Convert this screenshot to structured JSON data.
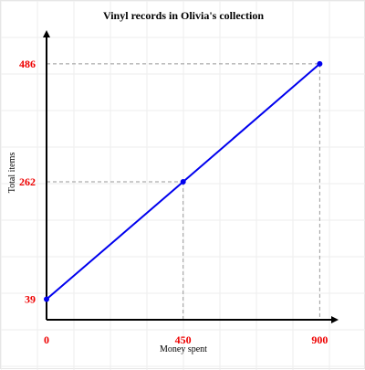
{
  "chart_data": {
    "type": "line",
    "title": "Vinyl records in Olivia's collection",
    "xlabel": "Money spent",
    "ylabel": "Total items",
    "x": [
      0,
      450,
      900
    ],
    "series": [
      {
        "values": [
          39,
          262,
          486
        ]
      }
    ],
    "x_ticks": [
      "0",
      "450",
      "900"
    ],
    "y_ticks": [
      "39",
      "262",
      "486"
    ],
    "xlim": [
      0,
      950
    ],
    "ylim": [
      0,
      550
    ],
    "grid": true,
    "colors": {
      "line": "#0000ee",
      "tick_label": "#ee0000",
      "guide": "#999999",
      "grid": "#eeeeee",
      "axis": "#000000"
    }
  }
}
